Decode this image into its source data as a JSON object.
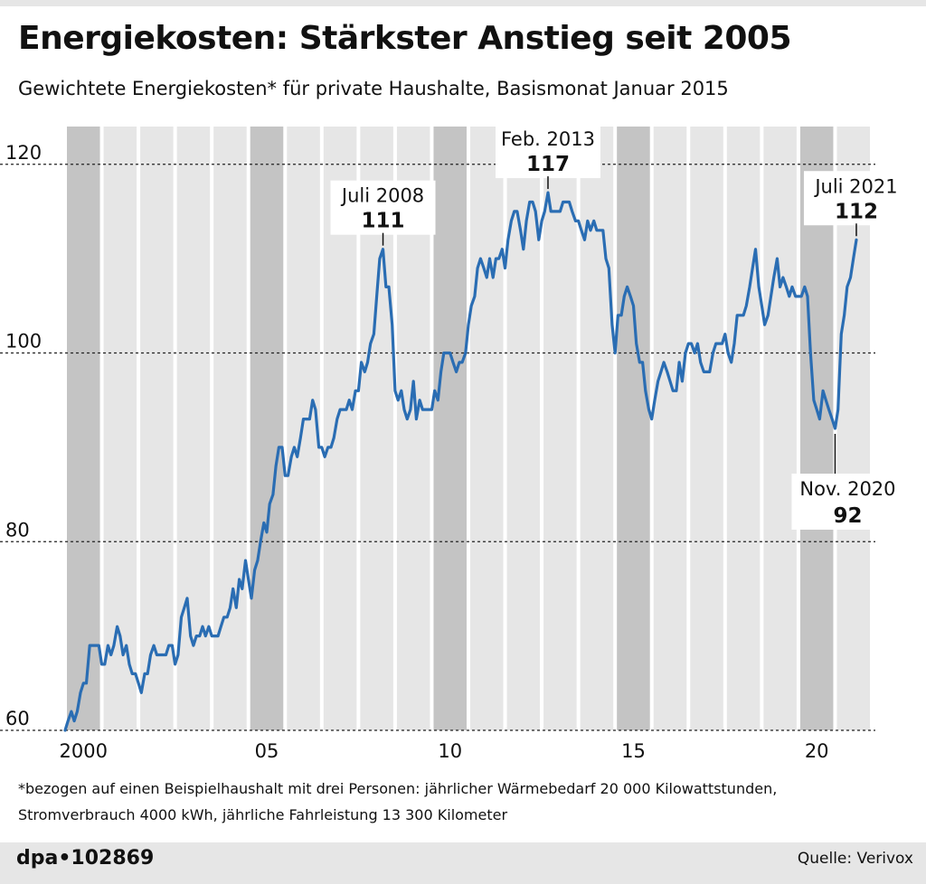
{
  "header": {
    "title": "Energiekosten: Stärkster Anstieg seit 2005",
    "subtitle": "Gewichtete Energiekosten* für private Haushalte, Basismonat Januar 2015"
  },
  "footnote": {
    "line1": "*bezogen auf einen Beispielhaushalt mit drei Personen: jährlicher Wärmebedarf 20 000 Kilowattstunden,",
    "line2": "Stromverbrauch 4000 kWh, jährliche Fahrleistung 13 300 Kilometer"
  },
  "footer": {
    "brand": "dpa•102869",
    "source": "Quelle: Verivox"
  },
  "colors": {
    "line": "#2a6db3",
    "band_light": "#e6e6e6",
    "band_dark": "#c4c4c4"
  },
  "chart_data": {
    "type": "line",
    "title": "Energiekosten: Stärkster Anstieg seit 2005",
    "xlabel": "",
    "ylabel": "",
    "x_unit": "year (decimal)",
    "xlim": [
      2000,
      2021.58
    ],
    "ylim": [
      60,
      124
    ],
    "yticks": [
      60,
      80,
      100,
      120
    ],
    "xticks": [
      {
        "value": 2000.5,
        "label": "2000"
      },
      {
        "value": 2005.5,
        "label": "05"
      },
      {
        "value": 2010.5,
        "label": "10"
      },
      {
        "value": 2015.5,
        "label": "15"
      },
      {
        "value": 2020.5,
        "label": "20"
      }
    ],
    "highlighted_years": [
      2000,
      2005,
      2010,
      2015,
      2020
    ],
    "series": [
      {
        "name": "Gewichtete Energiekosten",
        "points": [
          [
            2000.0,
            60
          ],
          [
            2000.08,
            61
          ],
          [
            2000.17,
            62
          ],
          [
            2000.25,
            61
          ],
          [
            2000.33,
            62
          ],
          [
            2000.42,
            64
          ],
          [
            2000.5,
            65
          ],
          [
            2000.58,
            65
          ],
          [
            2000.67,
            69
          ],
          [
            2000.75,
            69
          ],
          [
            2000.83,
            69
          ],
          [
            2000.92,
            69
          ],
          [
            2001.0,
            67
          ],
          [
            2001.08,
            67
          ],
          [
            2001.17,
            69
          ],
          [
            2001.25,
            68
          ],
          [
            2001.33,
            69
          ],
          [
            2001.42,
            71
          ],
          [
            2001.5,
            70
          ],
          [
            2001.58,
            68
          ],
          [
            2001.67,
            69
          ],
          [
            2001.75,
            67
          ],
          [
            2001.83,
            66
          ],
          [
            2001.92,
            66
          ],
          [
            2002.0,
            65
          ],
          [
            2002.08,
            64
          ],
          [
            2002.17,
            66
          ],
          [
            2002.25,
            66
          ],
          [
            2002.33,
            68
          ],
          [
            2002.42,
            69
          ],
          [
            2002.5,
            68
          ],
          [
            2002.58,
            68
          ],
          [
            2002.67,
            68
          ],
          [
            2002.75,
            68
          ],
          [
            2002.83,
            69
          ],
          [
            2002.92,
            69
          ],
          [
            2003.0,
            67
          ],
          [
            2003.08,
            68
          ],
          [
            2003.17,
            72
          ],
          [
            2003.25,
            73
          ],
          [
            2003.33,
            74
          ],
          [
            2003.42,
            70
          ],
          [
            2003.5,
            69
          ],
          [
            2003.58,
            70
          ],
          [
            2003.67,
            70
          ],
          [
            2003.75,
            71
          ],
          [
            2003.83,
            70
          ],
          [
            2003.92,
            71
          ],
          [
            2004.0,
            70
          ],
          [
            2004.08,
            70
          ],
          [
            2004.17,
            70
          ],
          [
            2004.25,
            71
          ],
          [
            2004.33,
            72
          ],
          [
            2004.42,
            72
          ],
          [
            2004.5,
            73
          ],
          [
            2004.58,
            75
          ],
          [
            2004.67,
            73
          ],
          [
            2004.75,
            76
          ],
          [
            2004.83,
            75
          ],
          [
            2004.92,
            78
          ],
          [
            2005.0,
            76
          ],
          [
            2005.08,
            74
          ],
          [
            2005.17,
            77
          ],
          [
            2005.25,
            78
          ],
          [
            2005.33,
            80
          ],
          [
            2005.42,
            82
          ],
          [
            2005.5,
            81
          ],
          [
            2005.58,
            84
          ],
          [
            2005.67,
            85
          ],
          [
            2005.75,
            88
          ],
          [
            2005.83,
            90
          ],
          [
            2005.92,
            90
          ],
          [
            2006.0,
            87
          ],
          [
            2006.08,
            87
          ],
          [
            2006.17,
            89
          ],
          [
            2006.25,
            90
          ],
          [
            2006.33,
            89
          ],
          [
            2006.42,
            91
          ],
          [
            2006.5,
            93
          ],
          [
            2006.58,
            93
          ],
          [
            2006.67,
            93
          ],
          [
            2006.75,
            95
          ],
          [
            2006.83,
            94
          ],
          [
            2006.92,
            90
          ],
          [
            2007.0,
            90
          ],
          [
            2007.08,
            89
          ],
          [
            2007.17,
            90
          ],
          [
            2007.25,
            90
          ],
          [
            2007.33,
            91
          ],
          [
            2007.42,
            93
          ],
          [
            2007.5,
            94
          ],
          [
            2007.58,
            94
          ],
          [
            2007.67,
            94
          ],
          [
            2007.75,
            95
          ],
          [
            2007.83,
            94
          ],
          [
            2007.92,
            96
          ],
          [
            2008.0,
            96
          ],
          [
            2008.08,
            99
          ],
          [
            2008.17,
            98
          ],
          [
            2008.25,
            99
          ],
          [
            2008.33,
            101
          ],
          [
            2008.42,
            102
          ],
          [
            2008.5,
            106
          ],
          [
            2008.58,
            110
          ],
          [
            2008.67,
            111
          ],
          [
            2008.75,
            107
          ],
          [
            2008.83,
            107
          ],
          [
            2008.92,
            103
          ],
          [
            2009.0,
            96
          ],
          [
            2009.08,
            95
          ],
          [
            2009.17,
            96
          ],
          [
            2009.25,
            94
          ],
          [
            2009.33,
            93
          ],
          [
            2009.42,
            94
          ],
          [
            2009.5,
            97
          ],
          [
            2009.58,
            93
          ],
          [
            2009.67,
            95
          ],
          [
            2009.75,
            94
          ],
          [
            2009.83,
            94
          ],
          [
            2009.92,
            94
          ],
          [
            2010.0,
            94
          ],
          [
            2010.08,
            96
          ],
          [
            2010.17,
            95
          ],
          [
            2010.25,
            98
          ],
          [
            2010.33,
            100
          ],
          [
            2010.42,
            100
          ],
          [
            2010.5,
            100
          ],
          [
            2010.58,
            99
          ],
          [
            2010.67,
            98
          ],
          [
            2010.75,
            99
          ],
          [
            2010.83,
            99
          ],
          [
            2010.92,
            100
          ],
          [
            2011.0,
            103
          ],
          [
            2011.08,
            105
          ],
          [
            2011.17,
            106
          ],
          [
            2011.25,
            109
          ],
          [
            2011.33,
            110
          ],
          [
            2011.42,
            109
          ],
          [
            2011.5,
            108
          ],
          [
            2011.58,
            110
          ],
          [
            2011.67,
            108
          ],
          [
            2011.75,
            110
          ],
          [
            2011.83,
            110
          ],
          [
            2011.92,
            111
          ],
          [
            2012.0,
            109
          ],
          [
            2012.08,
            112
          ],
          [
            2012.17,
            114
          ],
          [
            2012.25,
            115
          ],
          [
            2012.33,
            115
          ],
          [
            2012.42,
            113
          ],
          [
            2012.5,
            111
          ],
          [
            2012.58,
            114
          ],
          [
            2012.67,
            116
          ],
          [
            2012.75,
            116
          ],
          [
            2012.83,
            115
          ],
          [
            2012.92,
            112
          ],
          [
            2013.0,
            114
          ],
          [
            2013.08,
            115
          ],
          [
            2013.17,
            117
          ],
          [
            2013.25,
            115
          ],
          [
            2013.33,
            115
          ],
          [
            2013.42,
            115
          ],
          [
            2013.5,
            115
          ],
          [
            2013.58,
            116
          ],
          [
            2013.67,
            116
          ],
          [
            2013.75,
            116
          ],
          [
            2013.83,
            115
          ],
          [
            2013.92,
            114
          ],
          [
            2014.0,
            114
          ],
          [
            2014.08,
            113
          ],
          [
            2014.17,
            112
          ],
          [
            2014.25,
            114
          ],
          [
            2014.33,
            113
          ],
          [
            2014.42,
            114
          ],
          [
            2014.5,
            113
          ],
          [
            2014.58,
            113
          ],
          [
            2014.67,
            113
          ],
          [
            2014.75,
            110
          ],
          [
            2014.83,
            109
          ],
          [
            2014.92,
            103
          ],
          [
            2015.0,
            100
          ],
          [
            2015.08,
            104
          ],
          [
            2015.17,
            104
          ],
          [
            2015.25,
            106
          ],
          [
            2015.33,
            107
          ],
          [
            2015.42,
            106
          ],
          [
            2015.5,
            105
          ],
          [
            2015.58,
            101
          ],
          [
            2015.67,
            99
          ],
          [
            2015.75,
            99
          ],
          [
            2015.83,
            96
          ],
          [
            2015.92,
            94
          ],
          [
            2016.0,
            93
          ],
          [
            2016.08,
            95
          ],
          [
            2016.17,
            97
          ],
          [
            2016.25,
            98
          ],
          [
            2016.33,
            99
          ],
          [
            2016.42,
            98
          ],
          [
            2016.5,
            97
          ],
          [
            2016.58,
            96
          ],
          [
            2016.67,
            96
          ],
          [
            2016.75,
            99
          ],
          [
            2016.83,
            97
          ],
          [
            2016.92,
            100
          ],
          [
            2017.0,
            101
          ],
          [
            2017.08,
            101
          ],
          [
            2017.17,
            100
          ],
          [
            2017.25,
            101
          ],
          [
            2017.33,
            99
          ],
          [
            2017.42,
            98
          ],
          [
            2017.5,
            98
          ],
          [
            2017.58,
            98
          ],
          [
            2017.67,
            100
          ],
          [
            2017.75,
            101
          ],
          [
            2017.83,
            101
          ],
          [
            2017.92,
            101
          ],
          [
            2018.0,
            102
          ],
          [
            2018.08,
            100
          ],
          [
            2018.17,
            99
          ],
          [
            2018.25,
            101
          ],
          [
            2018.33,
            104
          ],
          [
            2018.42,
            104
          ],
          [
            2018.5,
            104
          ],
          [
            2018.58,
            105
          ],
          [
            2018.67,
            107
          ],
          [
            2018.75,
            109
          ],
          [
            2018.83,
            111
          ],
          [
            2018.92,
            107
          ],
          [
            2019.0,
            105
          ],
          [
            2019.08,
            103
          ],
          [
            2019.17,
            104
          ],
          [
            2019.25,
            106
          ],
          [
            2019.33,
            108
          ],
          [
            2019.42,
            110
          ],
          [
            2019.5,
            107
          ],
          [
            2019.58,
            108
          ],
          [
            2019.67,
            107
          ],
          [
            2019.75,
            106
          ],
          [
            2019.83,
            107
          ],
          [
            2019.92,
            106
          ],
          [
            2020.0,
            106
          ],
          [
            2020.08,
            106
          ],
          [
            2020.17,
            107
          ],
          [
            2020.25,
            106
          ],
          [
            2020.33,
            100
          ],
          [
            2020.42,
            95
          ],
          [
            2020.5,
            94
          ],
          [
            2020.58,
            93
          ],
          [
            2020.67,
            96
          ],
          [
            2020.75,
            95
          ],
          [
            2020.83,
            94
          ],
          [
            2020.92,
            93
          ],
          [
            2021.0,
            92
          ],
          [
            2021.08,
            94
          ],
          [
            2021.17,
            102
          ],
          [
            2021.25,
            104
          ],
          [
            2021.33,
            107
          ],
          [
            2021.42,
            108
          ],
          [
            2021.5,
            110
          ],
          [
            2021.58,
            112
          ]
        ]
      }
    ],
    "annotations": [
      {
        "label": "Juli 2008",
        "value_label": "111",
        "x": 2008.67,
        "y": 111,
        "position": "above"
      },
      {
        "label": "Feb. 2013",
        "value_label": "117",
        "x": 2013.17,
        "y": 117,
        "position": "above"
      },
      {
        "label": "Juli 2021",
        "value_label": "112",
        "x": 2021.58,
        "y": 112,
        "position": "above"
      },
      {
        "label": "Nov. 2020",
        "value_label": "92",
        "x": 2021.0,
        "y": 92,
        "position": "below"
      }
    ]
  }
}
